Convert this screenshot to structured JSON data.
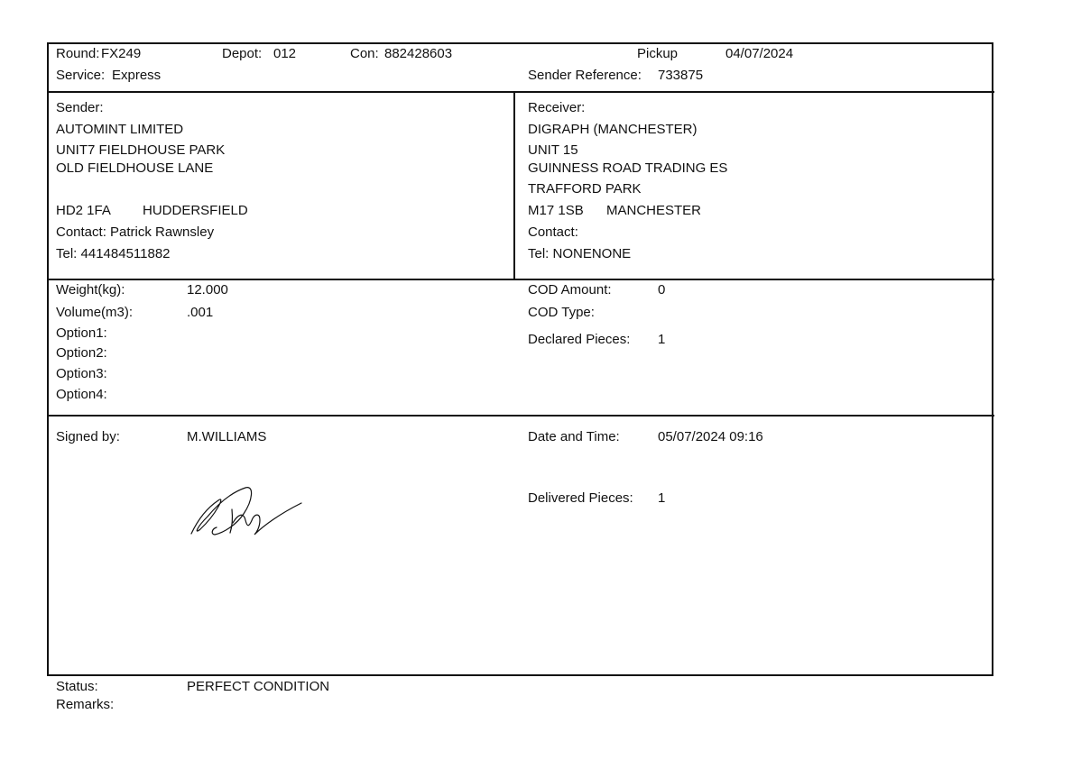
{
  "header": {
    "round_label": "Round:",
    "round": "FX249",
    "depot_label": "Depot:",
    "depot": "012",
    "con_label": "Con:",
    "con": "882428603",
    "pickup_label": "Pickup",
    "pickup_date": "04/07/2024",
    "service_label": "Service:",
    "service": "Express",
    "sender_ref_label": "Sender Reference:",
    "sender_ref": "733875"
  },
  "sender": {
    "label": "Sender:",
    "lines": [
      "AUTOMINT LIMITED",
      "UNIT7 FIELDHOUSE PARK",
      "OLD FIELDHOUSE LANE"
    ],
    "postcode": "HD2 1FA",
    "town": "HUDDERSFIELD",
    "contact": "Contact: Patrick Rawnsley",
    "tel": "Tel: 441484511882"
  },
  "receiver": {
    "label": "Receiver:",
    "lines": [
      "DIGRAPH (MANCHESTER)",
      "UNIT 15",
      "GUINNESS ROAD TRADING ES",
      "TRAFFORD PARK"
    ],
    "postcode": "M17 1SB",
    "town": "MANCHESTER",
    "contact": "Contact:",
    "tel": "Tel: NONENONE"
  },
  "details": {
    "weight_label": "Weight(kg):",
    "weight": "12.000",
    "volume_label": "Volume(m3):",
    "volume": ".001",
    "option1": "Option1:",
    "option2": "Option2:",
    "option3": "Option3:",
    "option4": "Option4:",
    "cod_amount_label": "COD Amount:",
    "cod_amount": "0",
    "cod_type_label": "COD Type:",
    "declared_label": "Declared Pieces:",
    "declared": "1"
  },
  "delivery": {
    "signed_label": "Signed by:",
    "signed_by": "M.WILLIAMS",
    "datetime_label": "Date and Time:",
    "datetime": "05/07/2024 09:16",
    "delivered_label": "Delivered Pieces:",
    "delivered": "1",
    "signature_icon": "handwritten-signature"
  },
  "footer": {
    "status_label": "Status:",
    "status": "PERFECT CONDITION",
    "remarks_label": "Remarks:"
  }
}
